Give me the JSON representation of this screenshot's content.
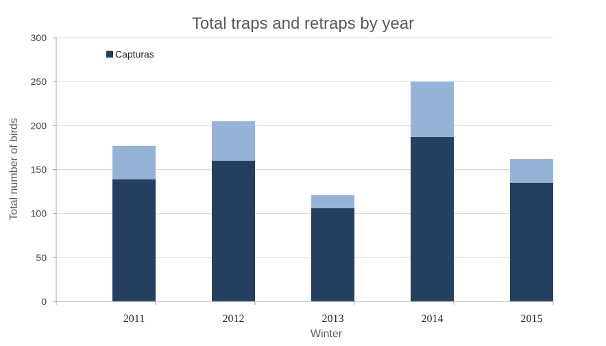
{
  "chart_data": {
    "type": "bar",
    "stacked": true,
    "title": "Total traps and retraps by year",
    "xlabel": "Winter",
    "ylabel": "Total number of birds",
    "categories": [
      "2011",
      "2012",
      "2013",
      "2014",
      "2015"
    ],
    "ylim": [
      0,
      300
    ],
    "yticks": [
      0,
      50,
      100,
      150,
      200,
      250,
      300
    ],
    "grid": true,
    "legend_position": "top-left",
    "series": [
      {
        "name": "Capturas",
        "values": [
          139,
          160,
          106,
          187,
          135
        ],
        "color": "#243F60"
      },
      {
        "values": [
          38,
          45,
          15,
          63,
          27
        ],
        "color": "#95B3D7"
      }
    ],
    "gridline_color": "#D9D9D9",
    "axis_color": "#A6A6A6"
  }
}
